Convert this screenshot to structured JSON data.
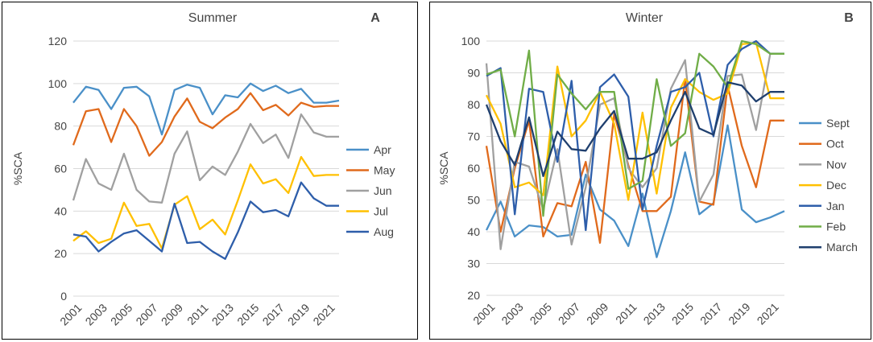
{
  "chart_data": [
    {
      "type": "line",
      "panel_letter": "A",
      "title": "Summer",
      "xlabel": "",
      "ylabel": "%SCA",
      "ylim": [
        0,
        120
      ],
      "yticks": [
        0,
        20,
        40,
        60,
        80,
        100,
        120
      ],
      "x": [
        2001,
        2002,
        2003,
        2004,
        2005,
        2006,
        2007,
        2008,
        2009,
        2010,
        2011,
        2012,
        2013,
        2014,
        2015,
        2016,
        2017,
        2018,
        2019,
        2020,
        2021,
        2022
      ],
      "xtick_labels": [
        "2001",
        "2003",
        "2005",
        "2007",
        "2009",
        "2011",
        "2013",
        "2015",
        "2017",
        "2019",
        "2021"
      ],
      "grid": true,
      "legend_position": "right",
      "series": [
        {
          "name": "Apr",
          "color": "#4a90c8",
          "values": [
            91,
            98.5,
            97,
            88,
            98,
            98.5,
            94,
            76,
            97,
            99.5,
            98,
            85.5,
            94.5,
            93.5,
            100,
            96.5,
            99,
            95.5,
            97.5,
            91,
            91,
            92
          ]
        },
        {
          "name": "May",
          "color": "#e06a1c",
          "values": [
            71,
            87,
            88,
            72.5,
            88,
            80,
            66,
            72.5,
            84.5,
            93,
            82,
            79,
            84,
            88,
            95.5,
            87.5,
            90,
            85,
            91,
            89,
            89.5,
            89.5
          ]
        },
        {
          "name": "Jun",
          "color": "#a0a0a0",
          "values": [
            45,
            64.5,
            53,
            50,
            67,
            50,
            44.5,
            44,
            67,
            77.5,
            54.5,
            61,
            57,
            68,
            81,
            72,
            76,
            65,
            85.5,
            77,
            75,
            75
          ]
        },
        {
          "name": "Jul",
          "color": "#ffc000",
          "values": [
            26,
            30.5,
            25,
            27,
            44,
            33,
            34,
            22.5,
            43,
            47,
            31.5,
            36,
            29,
            45,
            62,
            53,
            55,
            48.5,
            65.5,
            56.5,
            57,
            57
          ]
        },
        {
          "name": "Aug",
          "color": "#2e5eaa",
          "values": [
            29,
            28,
            21,
            25.5,
            29.5,
            31,
            26,
            21,
            43.5,
            25,
            25.5,
            21,
            17.5,
            30,
            44.5,
            39.5,
            40.5,
            37.5,
            53.5,
            46,
            42.5,
            42.5
          ]
        }
      ]
    },
    {
      "type": "line",
      "panel_letter": "B",
      "title": "Winter",
      "xlabel": "",
      "ylabel": "%SCA",
      "ylim": [
        20,
        100
      ],
      "yticks": [
        20,
        30,
        40,
        50,
        60,
        70,
        80,
        90,
        100
      ],
      "x": [
        2001,
        2002,
        2003,
        2004,
        2005,
        2006,
        2007,
        2008,
        2009,
        2010,
        2011,
        2012,
        2013,
        2014,
        2015,
        2016,
        2017,
        2018,
        2019,
        2020,
        2021,
        2022
      ],
      "xtick_labels": [
        "2001",
        "2003",
        "2005",
        "2007",
        "2009",
        "2011",
        "2013",
        "2015",
        "2017",
        "2019",
        "2021"
      ],
      "grid": true,
      "legend_position": "right",
      "series": [
        {
          "name": "Sept",
          "color": "#4a90c8",
          "values": [
            40.5,
            49.5,
            38.5,
            42,
            41.5,
            38.5,
            39,
            58,
            47,
            43.5,
            35.5,
            52,
            32,
            46.5,
            65,
            45.5,
            49,
            73.5,
            47,
            43,
            44.5,
            46.5
          ]
        },
        {
          "name": "Oct",
          "color": "#e06a1c",
          "values": [
            67,
            40,
            60,
            75,
            38.5,
            49,
            48,
            62,
            36.5,
            77,
            61,
            46.5,
            46.5,
            51,
            88,
            49.5,
            48.5,
            86,
            67,
            54,
            75,
            75
          ]
        },
        {
          "name": "Nov",
          "color": "#a0a0a0",
          "values": [
            93,
            34.5,
            62,
            60.5,
            47,
            66,
            36,
            54,
            80,
            82,
            60,
            54,
            60,
            85,
            94,
            49.5,
            58,
            89,
            89.5,
            72,
            96,
            96
          ]
        },
        {
          "name": "Dec",
          "color": "#ffc000",
          "values": [
            83,
            74,
            54,
            55.5,
            51.5,
            92,
            70,
            75,
            84,
            74,
            50,
            77.5,
            52,
            79,
            88,
            84,
            81.5,
            83.5,
            99,
            99.5,
            82,
            82
          ]
        },
        {
          "name": "Jan",
          "color": "#2e5eaa",
          "values": [
            89,
            91.5,
            45.5,
            85,
            84,
            62,
            87.5,
            40.5,
            85.5,
            89.5,
            82.5,
            47,
            67,
            84,
            85.5,
            90,
            70,
            92.5,
            97.5,
            100,
            96,
            96
          ]
        },
        {
          "name": "Feb",
          "color": "#70ad47",
          "values": [
            89.5,
            91,
            70,
            97,
            45,
            89.5,
            83.5,
            78.5,
            84,
            84,
            53.5,
            56,
            88,
            67,
            71,
            96,
            92,
            85.5,
            100,
            99,
            96,
            96
          ]
        },
        {
          "name": "March",
          "color": "#1f3f6e",
          "values": [
            80,
            68.5,
            61,
            76,
            57.5,
            71.5,
            66,
            65.5,
            72.5,
            78,
            63,
            63,
            65,
            75,
            84,
            72.5,
            70.5,
            87,
            86,
            81,
            84,
            84
          ]
        }
      ]
    }
  ]
}
